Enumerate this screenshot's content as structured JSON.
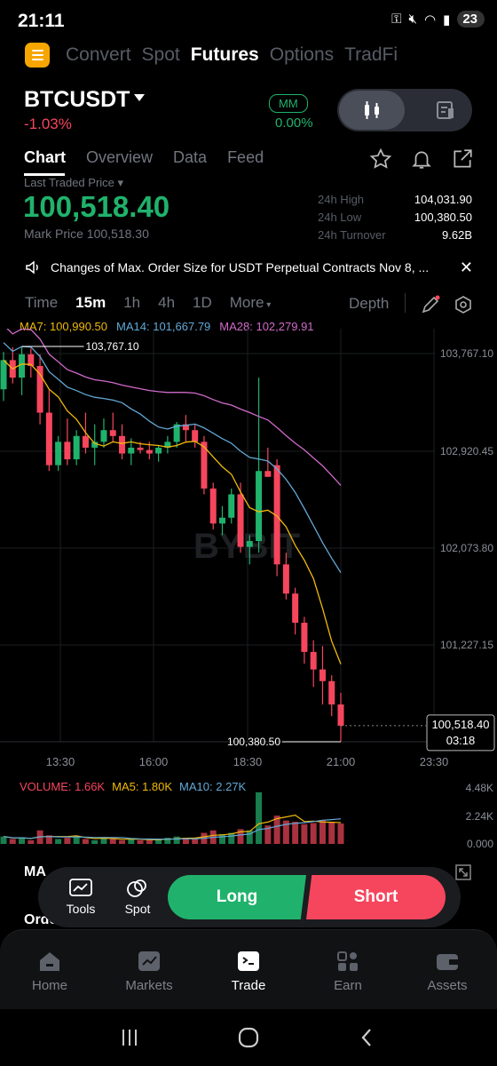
{
  "status_bar": {
    "time": "21:11",
    "battery": "23"
  },
  "top_nav": {
    "tabs": [
      "Convert",
      "Spot",
      "Futures",
      "Options",
      "TradFi"
    ],
    "active": "Futures"
  },
  "pair": {
    "symbol": "BTCUSDT",
    "change": "-1.03%",
    "mm_label": "MM",
    "mm_value": "0.00%"
  },
  "sub_tabs": {
    "items": [
      "Chart",
      "Overview",
      "Data",
      "Feed"
    ],
    "active": "Chart"
  },
  "ticker": {
    "last_label": "Last Traded Price",
    "last_price": "100,518.40",
    "mark_price": "Mark Price 100,518.30",
    "stats": [
      {
        "label": "24h High",
        "value": "104,031.90"
      },
      {
        "label": "24h Low",
        "value": "100,380.50"
      },
      {
        "label": "24h Turnover",
        "value": "9.62B"
      }
    ]
  },
  "notice": {
    "text": "Changes of Max. Order Size for USDT Perpetual Contracts Nov 8, ..."
  },
  "timeframes": {
    "items": [
      "Time",
      "15m",
      "1h",
      "4h",
      "1D",
      "More"
    ],
    "active": "15m",
    "depth": "Depth"
  },
  "ma_legend": {
    "ma7": "MA7: 100,990.50",
    "ma14": "MA14: 101,667.79",
    "ma28": "MA28: 102,279.91"
  },
  "chart_data": {
    "type": "candlestick",
    "watermark": "BYBIT",
    "y_ticks": [
      "103,767.10",
      "102,920.45",
      "102,073.80",
      "101,227.15"
    ],
    "x_ticks": [
      "13:30",
      "16:00",
      "18:30",
      "21:00",
      "23:30"
    ],
    "high_label": "103,767.10",
    "low_label": "100,380.50",
    "current_price": "100,518.40",
    "countdown": "03:18",
    "candles": [
      [
        103400,
        103720,
        103300,
        103650
      ],
      [
        103650,
        103760,
        103450,
        103500
      ],
      [
        103500,
        103767,
        103350,
        103700
      ],
      [
        103700,
        103750,
        103500,
        103600
      ],
      [
        103600,
        103700,
        103100,
        103200
      ],
      [
        103200,
        103400,
        102700,
        102750
      ],
      [
        102750,
        103000,
        102700,
        102950
      ],
      [
        102950,
        103150,
        102750,
        102800
      ],
      [
        102800,
        103050,
        102750,
        103000
      ],
      [
        103000,
        103200,
        102850,
        102900
      ],
      [
        102900,
        103100,
        102750,
        102950
      ],
      [
        102950,
        103150,
        102900,
        103050
      ],
      [
        103050,
        103200,
        102950,
        103000
      ],
      [
        103000,
        103100,
        102800,
        102850
      ],
      [
        102850,
        102980,
        102750,
        102900
      ],
      [
        102900,
        102950,
        102850,
        102880
      ],
      [
        102880,
        102950,
        102800,
        102850
      ],
      [
        102850,
        102920,
        102780,
        102900
      ],
      [
        102900,
        103000,
        102850,
        102950
      ],
      [
        102950,
        103120,
        102900,
        103100
      ],
      [
        103100,
        103180,
        102950,
        103050
      ],
      [
        103050,
        103100,
        102900,
        102950
      ],
      [
        102950,
        103000,
        102500,
        102550
      ],
      [
        102550,
        102600,
        102200,
        102250
      ],
      [
        102250,
        102400,
        102150,
        102300
      ],
      [
        102300,
        102550,
        102250,
        102500
      ],
      [
        102500,
        102600,
        102000,
        102050
      ],
      [
        102050,
        102150,
        101900,
        102100
      ],
      [
        102100,
        103500,
        102000,
        102700
      ],
      [
        102700,
        102900,
        102650,
        102650
      ],
      [
        102750,
        102800,
        101800,
        101900
      ],
      [
        101900,
        102000,
        101600,
        101650
      ],
      [
        101650,
        101700,
        101300,
        101400
      ],
      [
        101400,
        101450,
        101050,
        101150
      ],
      [
        101150,
        101250,
        100850,
        101000
      ],
      [
        101000,
        101200,
        100700,
        100900
      ],
      [
        100900,
        100950,
        100600,
        100700
      ],
      [
        100700,
        100800,
        100380,
        100518
      ]
    ],
    "ma_values": {
      "ma7_end": 100990.5,
      "ma14_end": 101667.79,
      "ma28_end": 102279.91
    },
    "volume": {
      "label": "VOLUME: 1.66K",
      "ma5": "MA5: 1.80K",
      "ma10": "MA10: 2.27K",
      "y_ticks": [
        "4.48K",
        "2.24K",
        "0.000"
      ],
      "values": [
        0.6,
        0.4,
        0.5,
        0.3,
        1.1,
        0.7,
        0.4,
        0.5,
        0.6,
        0.4,
        0.3,
        0.5,
        0.4,
        0.3,
        0.4,
        0.3,
        0.3,
        0.4,
        0.5,
        0.6,
        0.5,
        0.4,
        0.9,
        1.1,
        0.8,
        0.9,
        1.2,
        1.1,
        4.2,
        1.5,
        2.3,
        1.9,
        1.8,
        1.6,
        1.7,
        1.9,
        1.8,
        1.66
      ]
    }
  },
  "indicators_peek": "MA",
  "orders_peek": "Orde",
  "actions": {
    "tools": "Tools",
    "spot": "Spot",
    "long": "Long",
    "short": "Short"
  },
  "bottom_nav": {
    "items": [
      "Home",
      "Markets",
      "Trade",
      "Earn",
      "Assets"
    ],
    "active": "Trade"
  },
  "colors": {
    "green": "#20b26c",
    "red": "#f6465d",
    "accent": "#f7a600"
  }
}
